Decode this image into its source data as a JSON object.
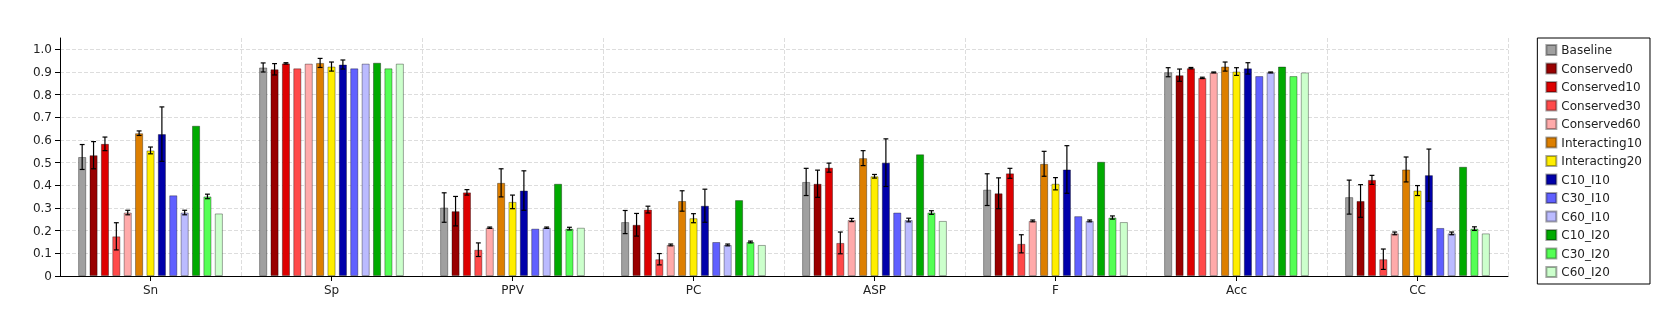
{
  "chart_data": {
    "type": "bar",
    "categories": [
      "Sn",
      "Sp",
      "PPV",
      "PC",
      "ASP",
      "F",
      "Acc",
      "CC"
    ],
    "ylim": [
      0,
      1.05
    ],
    "yticks": [
      0,
      0.1,
      0.2,
      0.3,
      0.4,
      0.5,
      0.6,
      0.7,
      0.8,
      0.9,
      {
        "value": 1,
        "label": "1.0"
      }
    ],
    "grid": true,
    "legend": "right",
    "series": [
      {
        "name": "Baseline",
        "color": "#a0a0a0",
        "values": [
          0.525,
          0.92,
          0.302,
          0.238,
          0.415,
          0.381,
          0.899,
          0.348
        ],
        "errors": [
          0.055,
          0.02,
          0.065,
          0.051,
          0.06,
          0.07,
          0.02,
          0.075
        ]
      },
      {
        "name": "Conserved0",
        "color": "#990000",
        "values": [
          0.533,
          0.912,
          0.286,
          0.226,
          0.407,
          0.365,
          0.886,
          0.331
        ],
        "errors": [
          0.06,
          0.025,
          0.065,
          0.05,
          0.06,
          0.068,
          0.027,
          0.072
        ]
      },
      {
        "name": "Conserved10",
        "color": "#dd0000",
        "values": [
          0.583,
          0.938,
          0.369,
          0.293,
          0.478,
          0.453,
          0.917,
          0.424
        ],
        "errors": [
          0.03,
          0.003,
          0.012,
          0.015,
          0.02,
          0.022,
          0.003,
          0.02
        ]
      },
      {
        "name": "Conserved30",
        "color": "#ff4a4a",
        "values": [
          0.175,
          0.916,
          0.116,
          0.074,
          0.146,
          0.142,
          0.874,
          0.074
        ],
        "errors": [
          0.06,
          null,
          0.03,
          0.025,
          0.048,
          0.04,
          0.003,
          0.045
        ]
      },
      {
        "name": "Conserved60",
        "color": "#ffaaaa",
        "values": [
          0.28,
          0.937,
          0.213,
          0.137,
          0.247,
          0.243,
          0.898,
          0.188
        ],
        "errors": [
          0.01,
          null,
          0.003,
          0.004,
          0.007,
          0.004,
          0.002,
          0.006
        ]
      },
      {
        "name": "Interacting10",
        "color": "#dd7f00",
        "values": [
          0.63,
          0.94,
          0.411,
          0.331,
          0.52,
          0.495,
          0.924,
          0.47
        ],
        "errors": [
          0.01,
          0.02,
          0.062,
          0.045,
          0.033,
          0.055,
          0.02,
          0.055
        ]
      },
      {
        "name": "Interacting20",
        "color": "#ffee00",
        "values": [
          0.554,
          0.924,
          0.327,
          0.255,
          0.44,
          0.407,
          0.902,
          0.377
        ],
        "errors": [
          0.015,
          0.02,
          0.03,
          0.02,
          0.008,
          0.027,
          0.017,
          0.022
        ]
      },
      {
        "name": "C10_I10",
        "color": "#0000aa",
        "values": [
          0.626,
          0.933,
          0.377,
          0.31,
          0.5,
          0.47,
          0.916,
          0.445
        ],
        "errors": [
          0.12,
          0.02,
          0.087,
          0.073,
          0.105,
          0.105,
          0.025,
          0.115
        ]
      },
      {
        "name": "C30_I10",
        "color": "#6060ff",
        "values": [
          0.356,
          0.916,
          0.209,
          0.15,
          0.28,
          0.264,
          0.882,
          0.212
        ]
      },
      {
        "name": "C60_I10",
        "color": "#bbbbff",
        "values": [
          0.28,
          0.937,
          0.213,
          0.137,
          0.247,
          0.243,
          0.898,
          0.188
        ],
        "errors": [
          0.01,
          null,
          0.003,
          0.004,
          0.008,
          0.004,
          0.002,
          0.006
        ]
      },
      {
        "name": "C10_I20",
        "color": "#00aa00",
        "values": [
          0.663,
          0.941,
          0.407,
          0.335,
          0.537,
          0.504,
          0.924,
          0.482
        ]
      },
      {
        "name": "C30_I20",
        "color": "#55ff55",
        "values": [
          0.351,
          0.916,
          0.209,
          0.15,
          0.28,
          0.258,
          0.882,
          0.209
        ],
        "errors": [
          0.01,
          null,
          0.006,
          0.004,
          0.008,
          0.007,
          null,
          0.008
        ]
      },
      {
        "name": "C60_I20",
        "color": "#ccffcc",
        "values": [
          0.276,
          0.937,
          0.213,
          0.137,
          0.243,
          0.238,
          0.898,
          0.188
        ]
      }
    ]
  }
}
